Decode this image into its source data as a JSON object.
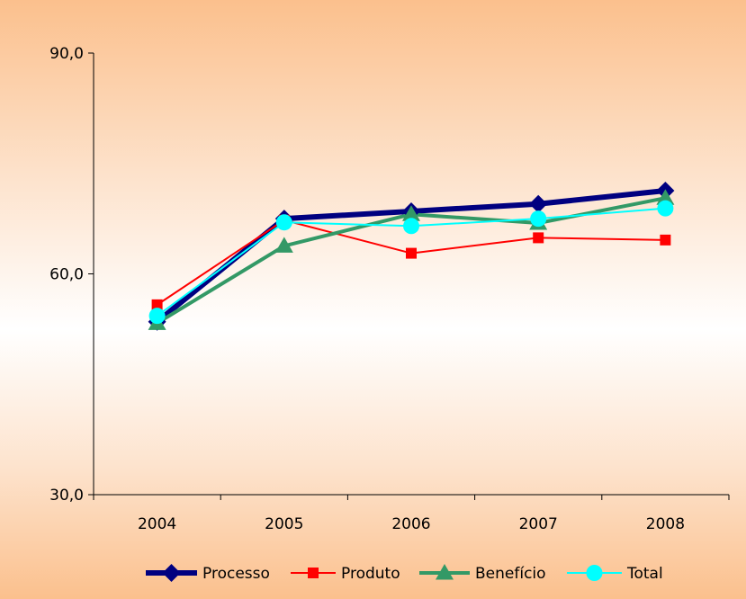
{
  "chart_data": {
    "type": "line",
    "title": "",
    "xlabel": "",
    "ylabel": "",
    "categories": [
      "2004",
      "2005",
      "2006",
      "2007",
      "2008"
    ],
    "ylim": [
      30,
      90
    ],
    "yticks": [
      "30,0",
      "60,0",
      "90,0"
    ],
    "ytick_values": [
      30,
      60,
      90
    ],
    "grid": false,
    "legend_position": "bottom",
    "series": [
      {
        "name": "Processo",
        "values": [
          53.5,
          67.5,
          68.5,
          69.5,
          71.3
        ],
        "color": "#000080",
        "marker": "diamond"
      },
      {
        "name": "Produto",
        "values": [
          55.8,
          67.3,
          62.8,
          64.9,
          64.6
        ],
        "color": "#ff0000",
        "marker": "square"
      },
      {
        "name": "Benefício",
        "values": [
          53.3,
          63.8,
          68.1,
          66.9,
          70.3
        ],
        "color": "#339966",
        "marker": "triangle"
      },
      {
        "name": "Total",
        "values": [
          54.3,
          67.0,
          66.5,
          67.5,
          68.9
        ],
        "color": "#00ffff",
        "marker": "circle"
      }
    ]
  }
}
